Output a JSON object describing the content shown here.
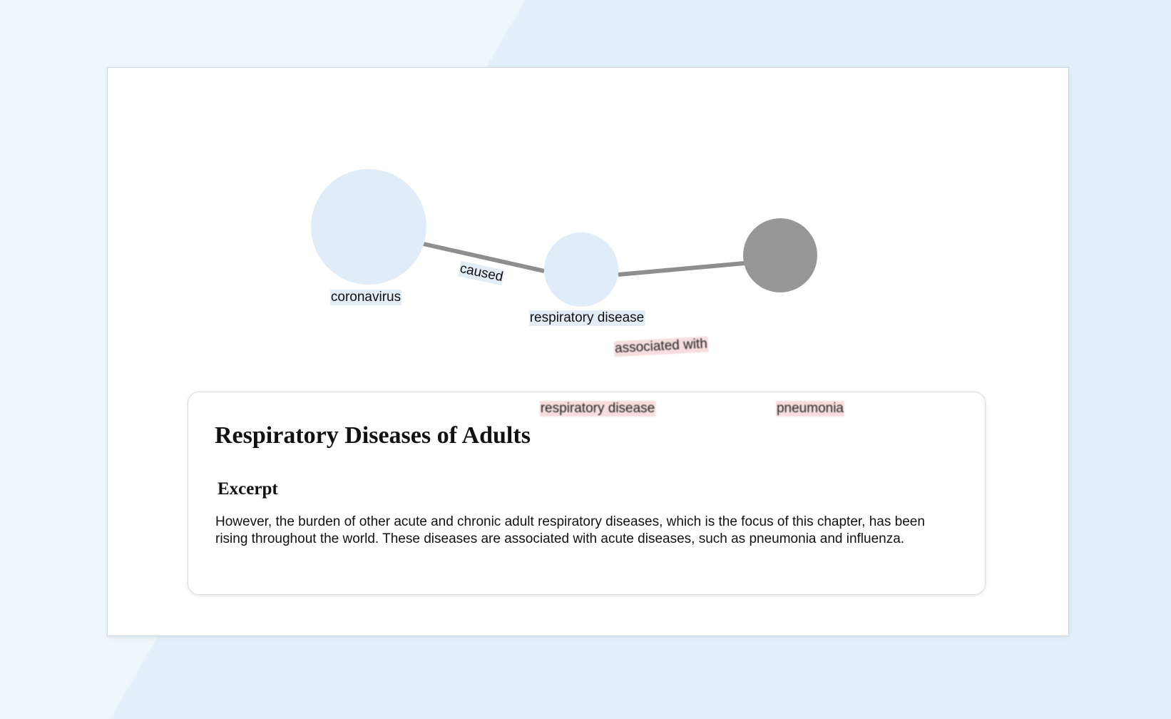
{
  "graph": {
    "nodes": [
      "coronavirus",
      "respiratory disease"
    ],
    "edges": [
      "caused",
      "associated with"
    ],
    "highlighted_terms": [
      "respiratory disease",
      "pneumonia"
    ]
  },
  "card": {
    "title": "Respiratory Diseases of Adults",
    "subtitle": "Excerpt",
    "text": "However, the burden of other acute and chronic adult respiratory diseases, which is the focus of this chapter, has been rising throughout the world. These diseases are associated with acute diseases, such as pneumonia and influenza."
  }
}
